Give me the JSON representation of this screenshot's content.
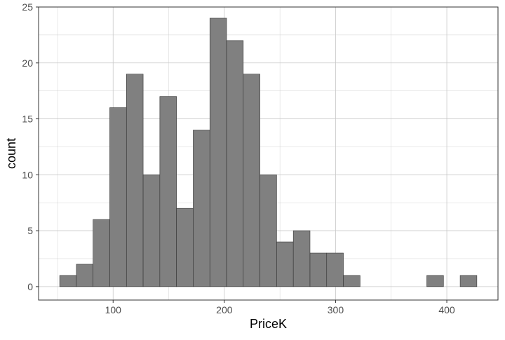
{
  "chart_data": {
    "type": "bar",
    "title": "",
    "xlabel": "PriceK",
    "ylabel": "count",
    "x_ticks": [
      100,
      200,
      300,
      400
    ],
    "y_ticks": [
      0,
      5,
      10,
      15,
      20,
      25
    ],
    "xlim": [
      33,
      446
    ],
    "ylim": [
      -1.2,
      25
    ],
    "bin_width": 15,
    "bins": [
      {
        "start": 52,
        "end": 67,
        "count": 1
      },
      {
        "start": 67,
        "end": 82,
        "count": 2
      },
      {
        "start": 82,
        "end": 97,
        "count": 6
      },
      {
        "start": 97,
        "end": 112,
        "count": 16
      },
      {
        "start": 112,
        "end": 127,
        "count": 19
      },
      {
        "start": 127,
        "end": 142,
        "count": 10
      },
      {
        "start": 142,
        "end": 157,
        "count": 17
      },
      {
        "start": 157,
        "end": 172,
        "count": 7
      },
      {
        "start": 172,
        "end": 187,
        "count": 14
      },
      {
        "start": 187,
        "end": 202,
        "count": 24
      },
      {
        "start": 202,
        "end": 217,
        "count": 22
      },
      {
        "start": 217,
        "end": 232,
        "count": 19
      },
      {
        "start": 232,
        "end": 247,
        "count": 10
      },
      {
        "start": 247,
        "end": 262,
        "count": 4
      },
      {
        "start": 262,
        "end": 277,
        "count": 5
      },
      {
        "start": 277,
        "end": 292,
        "count": 3
      },
      {
        "start": 292,
        "end": 307,
        "count": 3
      },
      {
        "start": 307,
        "end": 322,
        "count": 1
      },
      {
        "start": 322,
        "end": 337,
        "count": 0
      },
      {
        "start": 337,
        "end": 352,
        "count": 0
      },
      {
        "start": 352,
        "end": 367,
        "count": 0
      },
      {
        "start": 367,
        "end": 382,
        "count": 0
      },
      {
        "start": 382,
        "end": 397,
        "count": 1
      },
      {
        "start": 397,
        "end": 412,
        "count": 0
      },
      {
        "start": 412,
        "end": 427,
        "count": 1
      }
    ],
    "grid": true,
    "bar_color": "#808080",
    "bar_border_color": "#333333",
    "grid_color": "#c8c8c8",
    "panel_border_color": "#333333"
  }
}
